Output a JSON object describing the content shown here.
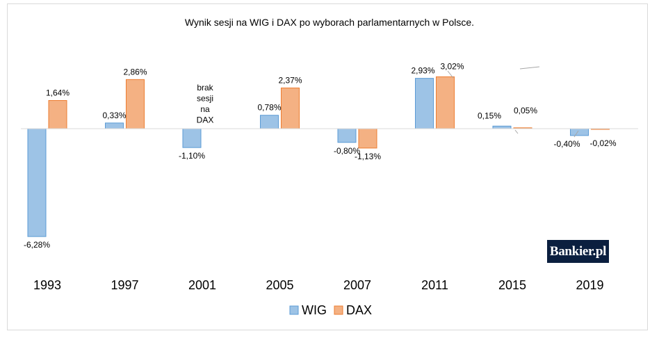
{
  "chart_data": {
    "type": "bar",
    "title": "Wynik sesji na WIG i DAX po wyborach parlamentarnych w Polsce.",
    "categories": [
      "1993",
      "1997",
      "2001",
      "2005",
      "2007",
      "2011",
      "2015",
      "2019"
    ],
    "series": [
      {
        "name": "WIG",
        "values": [
          -6.28,
          0.33,
          -1.1,
          0.78,
          -0.8,
          2.93,
          0.15,
          -0.4
        ],
        "labels": [
          "-6,28%",
          "0,33%",
          "-1,10%",
          "0,78%",
          "-0,80%",
          "2,93%",
          "0,15%",
          "-0,40%"
        ],
        "color": "#9dc3e6",
        "stroke": "#5b9bd5"
      },
      {
        "name": "DAX",
        "values": [
          1.64,
          2.86,
          null,
          2.37,
          -1.13,
          3.02,
          0.05,
          -0.02
        ],
        "labels": [
          "1,64%",
          "2,86%",
          "",
          "2,37%",
          "-1,13%",
          "3,02%",
          "0,05%",
          "-0,02%"
        ],
        "color": "#f4b183",
        "stroke": "#ed7d31"
      }
    ],
    "annotation": [
      "brak",
      "sesji",
      "na",
      "DAX"
    ],
    "legend_position": "bottom",
    "grid": false
  },
  "logo": {
    "text": "Bankier.pl"
  }
}
